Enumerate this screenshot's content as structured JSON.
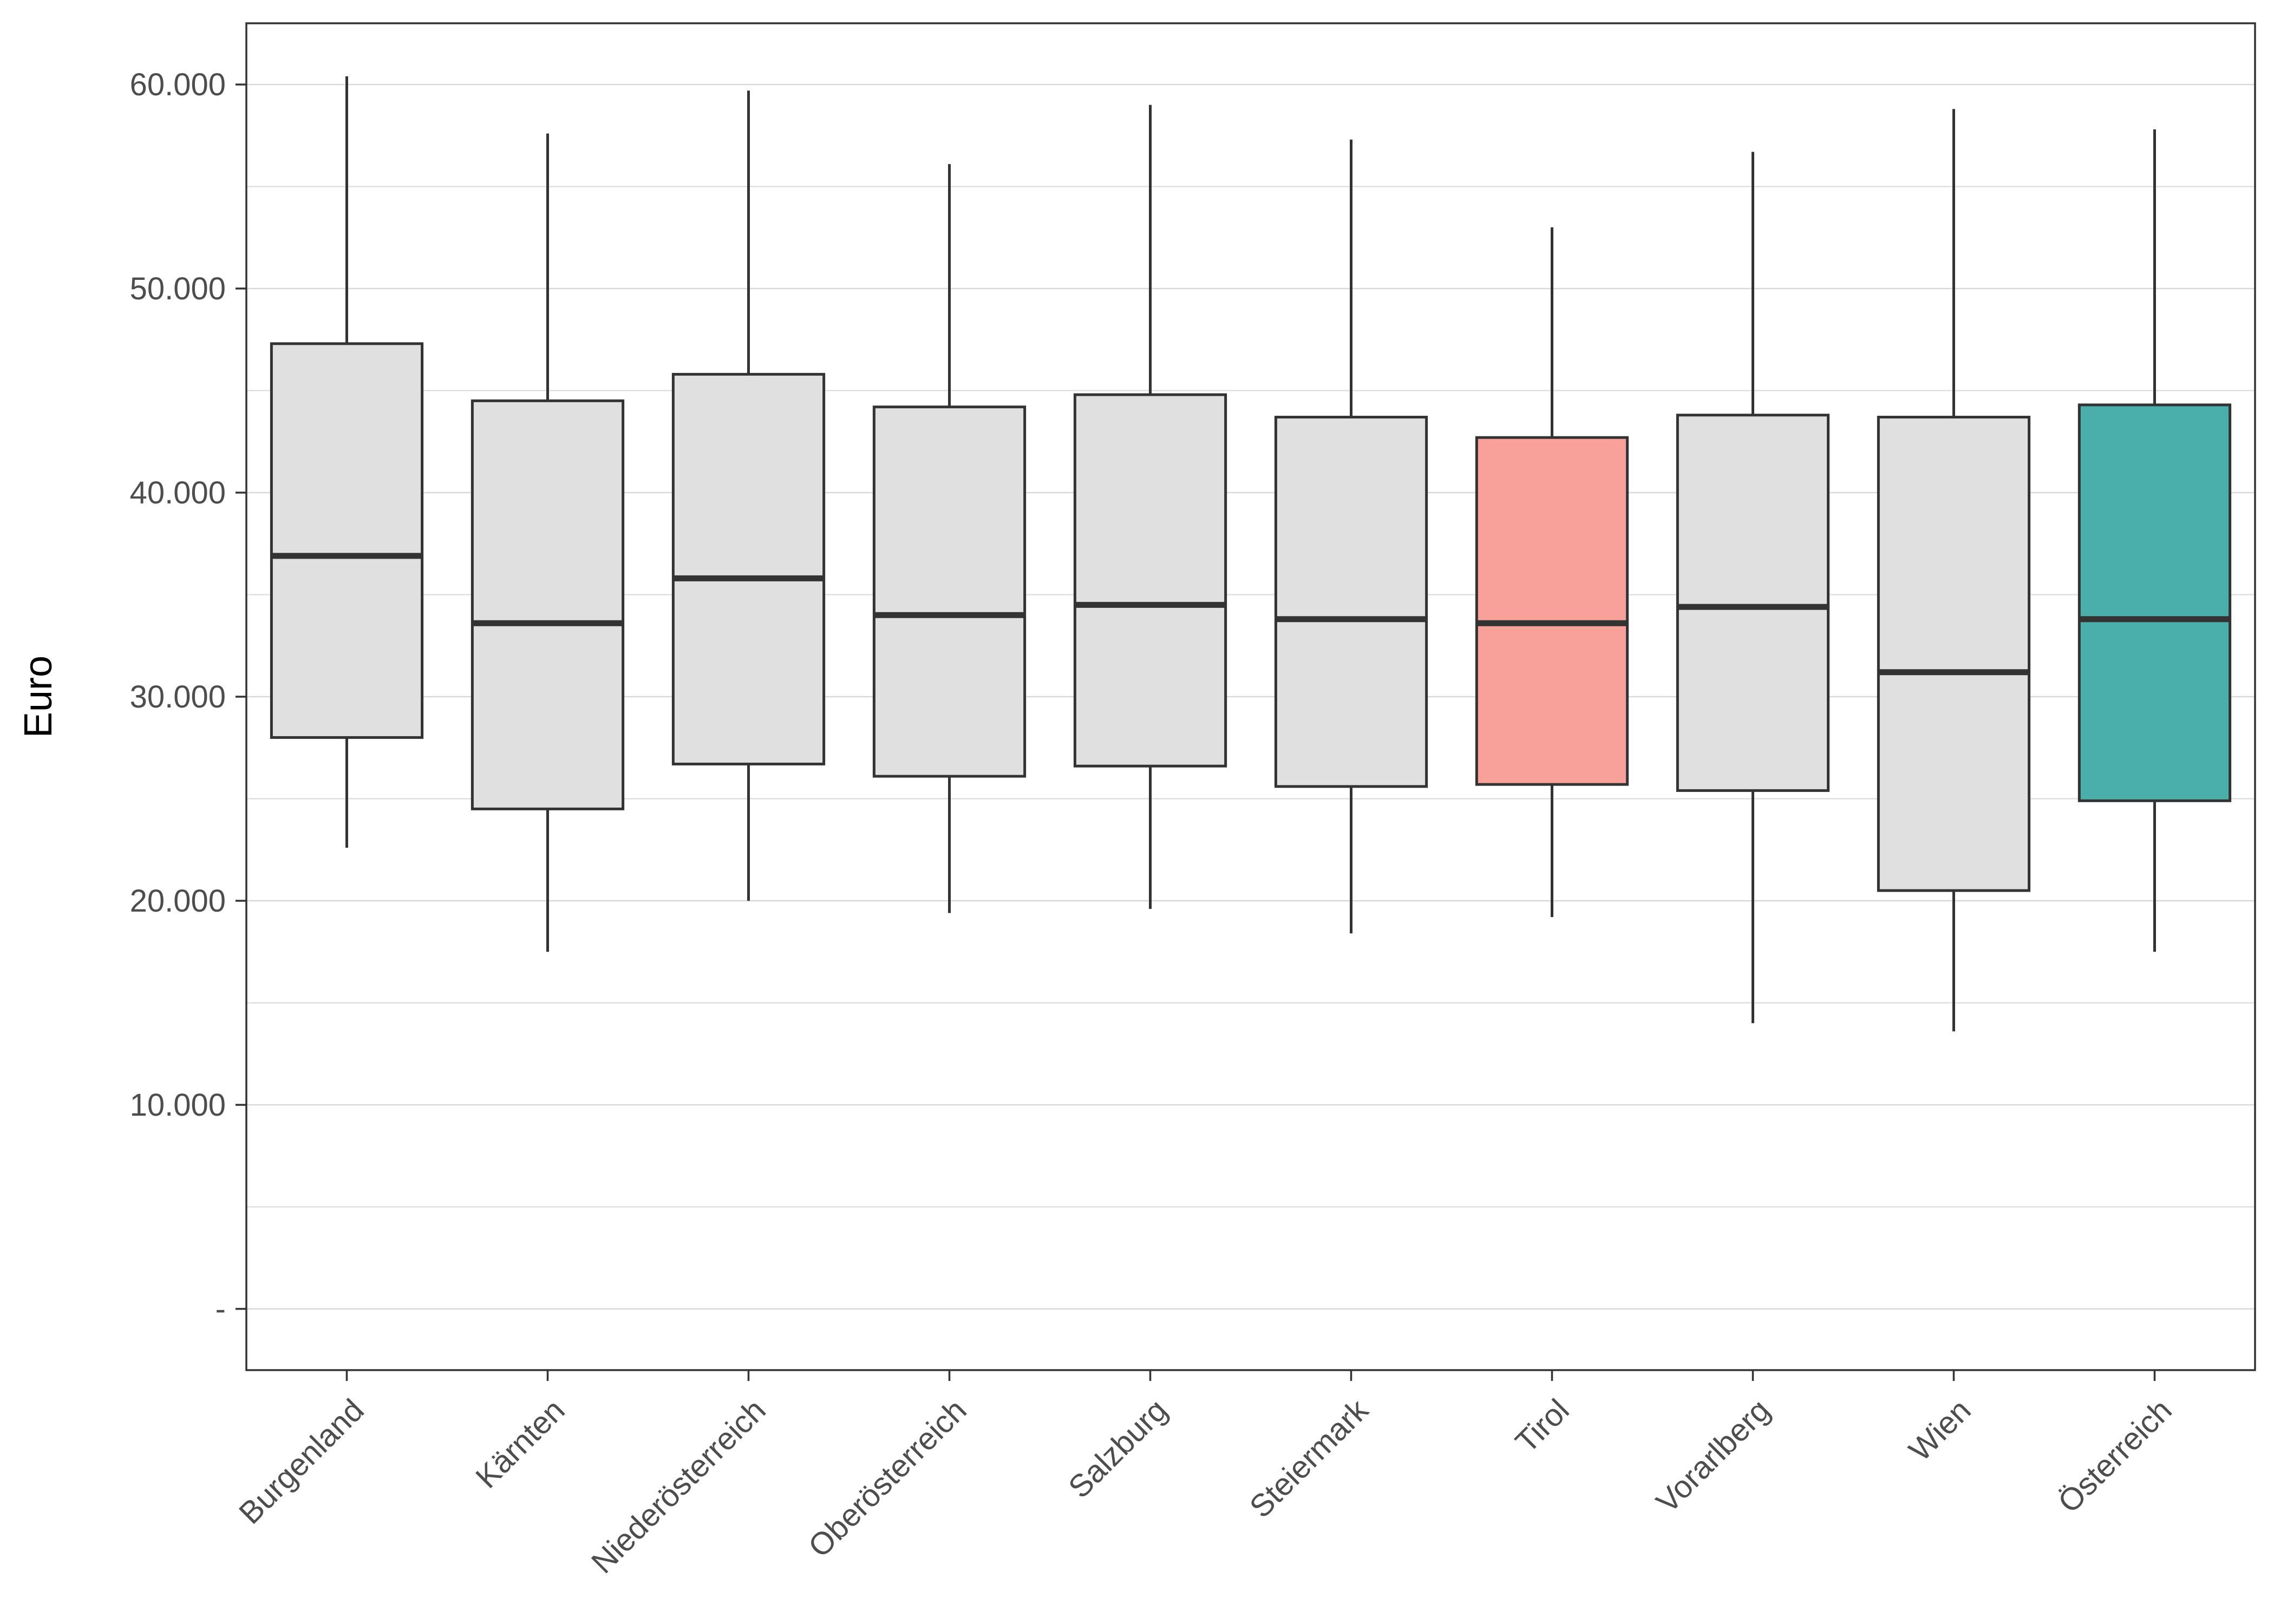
{
  "chart_data": {
    "type": "boxplot",
    "ylabel": "Euro",
    "xlabel": "",
    "ylim": [
      -3000,
      63000
    ],
    "yticks": [
      {
        "value": 0,
        "label": "-"
      },
      {
        "value": 10000,
        "label": "10.000"
      },
      {
        "value": 20000,
        "label": "20.000"
      },
      {
        "value": 30000,
        "label": "30.000"
      },
      {
        "value": 40000,
        "label": "40.000"
      },
      {
        "value": 50000,
        "label": "50.000"
      },
      {
        "value": 60000,
        "label": "60.000"
      }
    ],
    "grid": true,
    "categories": [
      "Burgenland",
      "Kärnten",
      "Niederösterreich",
      "Oberösterreich",
      "Salzburg",
      "Steiermark",
      "Tirol",
      "Vorarlberg",
      "Wien",
      "Österreich"
    ],
    "boxes": [
      {
        "category": "Burgenland",
        "whisker_low": 22600,
        "q1": 28000,
        "median": 36900,
        "q3": 47300,
        "whisker_high": 60400,
        "color": "#e0e0e0"
      },
      {
        "category": "Kärnten",
        "whisker_low": 17500,
        "q1": 24500,
        "median": 33600,
        "q3": 44500,
        "whisker_high": 57600,
        "color": "#e0e0e0"
      },
      {
        "category": "Niederösterreich",
        "whisker_low": 20000,
        "q1": 26700,
        "median": 35800,
        "q3": 45800,
        "whisker_high": 59700,
        "color": "#e0e0e0"
      },
      {
        "category": "Oberösterreich",
        "whisker_low": 19400,
        "q1": 26100,
        "median": 34000,
        "q3": 44200,
        "whisker_high": 56100,
        "color": "#e0e0e0"
      },
      {
        "category": "Salzburg",
        "whisker_low": 19600,
        "q1": 26600,
        "median": 34500,
        "q3": 44800,
        "whisker_high": 59000,
        "color": "#e0e0e0"
      },
      {
        "category": "Steiermark",
        "whisker_low": 18400,
        "q1": 25600,
        "median": 33800,
        "q3": 43700,
        "whisker_high": 57300,
        "color": "#e0e0e0"
      },
      {
        "category": "Tirol",
        "whisker_low": 19200,
        "q1": 25700,
        "median": 33600,
        "q3": 42700,
        "whisker_high": 53000,
        "color": "#f8a09a"
      },
      {
        "category": "Vorarlberg",
        "whisker_low": 14000,
        "q1": 25400,
        "median": 34400,
        "q3": 43800,
        "whisker_high": 56700,
        "color": "#e0e0e0"
      },
      {
        "category": "Wien",
        "whisker_low": 13600,
        "q1": 20500,
        "median": 31200,
        "q3": 43700,
        "whisker_high": 58800,
        "color": "#e0e0e0"
      },
      {
        "category": "Österreich",
        "whisker_low": 17500,
        "q1": 24900,
        "median": 33800,
        "q3": 44300,
        "whisker_high": 57800,
        "color": "#4aaeab"
      }
    ]
  }
}
